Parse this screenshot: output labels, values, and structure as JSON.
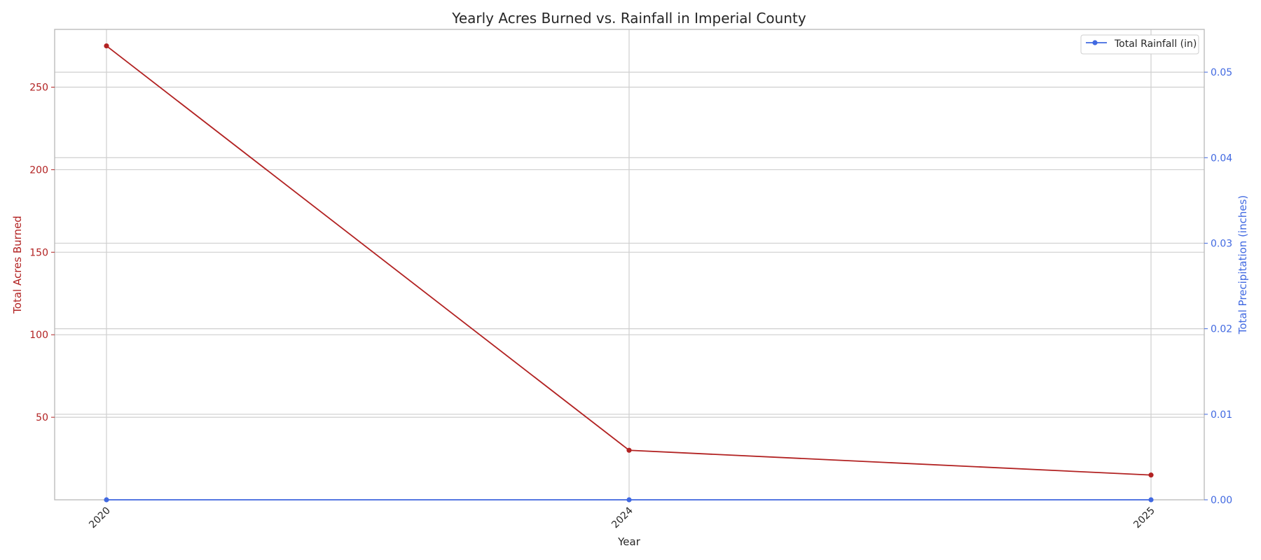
{
  "chart_data": {
    "type": "line",
    "title": "Yearly Acres Burned vs. Rainfall in Imperial County",
    "xlabel": "Year",
    "ylabel_left": "Total Acres Burned",
    "ylabel_right": "Total Precipitation (inches)",
    "categories": [
      "2020",
      "2024",
      "2025"
    ],
    "series": [
      {
        "axis": "left",
        "color": "#b22222",
        "values": [
          275,
          30,
          15
        ]
      },
      {
        "name": "Total Rainfall (in)",
        "axis": "right",
        "color": "#4169e1",
        "values": [
          0,
          0,
          0
        ]
      }
    ],
    "ylim_left": [
      0,
      285
    ],
    "ylim_right": [
      0,
      0.055
    ],
    "yticks_left": [
      50,
      100,
      150,
      200,
      250
    ],
    "yticks_right": [
      "0.00",
      "0.01",
      "0.02",
      "0.03",
      "0.04",
      "0.05"
    ],
    "legend_position": "top-right",
    "grid": true
  }
}
